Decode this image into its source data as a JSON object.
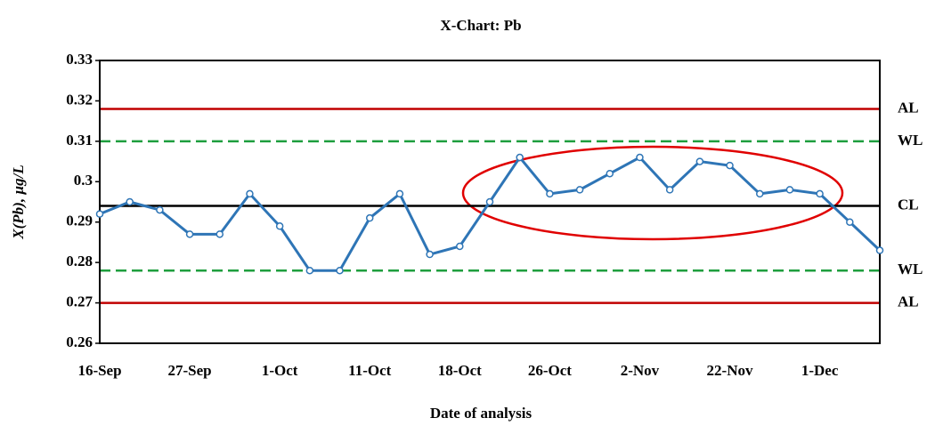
{
  "chart_data": {
    "type": "line",
    "title": "X-Chart: Pb",
    "x_label": "Date of analysis",
    "y_label": "X(Pb), µg/L",
    "categories": [
      "16-Sep",
      null,
      null,
      "27-Sep",
      null,
      null,
      "1-Oct",
      null,
      null,
      "11-Oct",
      null,
      null,
      "18-Oct",
      null,
      null,
      "26-Oct",
      null,
      null,
      "2-Nov",
      null,
      null,
      "22-Nov",
      null,
      null,
      "1-Dec",
      null,
      null
    ],
    "series": [
      {
        "name": "Pb",
        "color": "#2e75b6",
        "values": [
          0.292,
          0.295,
          0.293,
          0.287,
          0.287,
          0.297,
          0.289,
          0.278,
          0.278,
          0.291,
          0.297,
          0.282,
          0.284,
          0.295,
          0.306,
          0.297,
          0.298,
          0.302,
          0.306,
          0.298,
          0.305,
          0.304,
          0.297,
          0.298,
          0.297,
          0.29,
          0.283
        ]
      }
    ],
    "limits": [
      {
        "label": "AL",
        "value": 0.318,
        "color": "#c00000",
        "dashed": false
      },
      {
        "label": "WL",
        "value": 0.31,
        "color": "#1e9e3e",
        "dashed": true
      },
      {
        "label": "CL",
        "value": 0.294,
        "color": "#000000",
        "dashed": false
      },
      {
        "label": "WL",
        "value": 0.278,
        "color": "#1e9e3e",
        "dashed": true
      },
      {
        "label": "AL",
        "value": 0.27,
        "color": "#c00000",
        "dashed": false
      }
    ],
    "ylim": [
      0.26,
      0.33
    ],
    "yticks": [
      0.26,
      0.27,
      0.28,
      0.29,
      0.3,
      0.31,
      0.32,
      0.33
    ],
    "grid": false
  }
}
